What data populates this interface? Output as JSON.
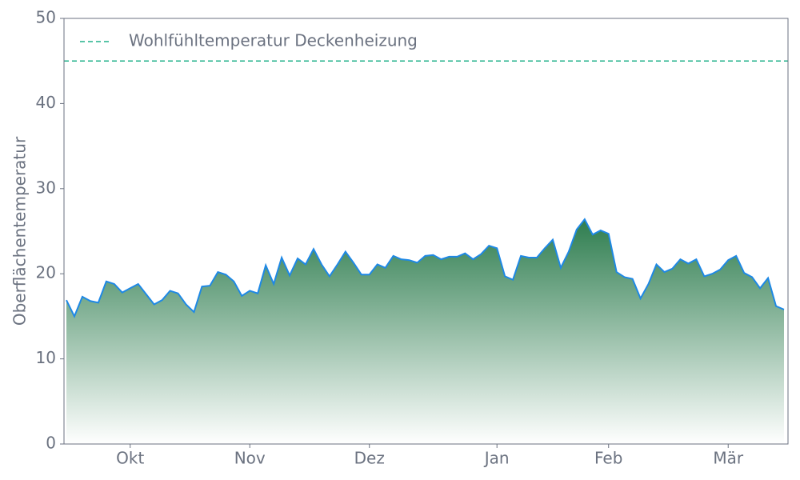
{
  "chart_data": {
    "type": "area",
    "ylabel": "Oberflächentemperatur",
    "categories": [
      null,
      null,
      null,
      null,
      null,
      null,
      null,
      null,
      "Okt",
      null,
      null,
      null,
      null,
      null,
      null,
      null,
      null,
      null,
      null,
      null,
      null,
      null,
      null,
      "Nov",
      null,
      null,
      null,
      null,
      null,
      null,
      null,
      null,
      null,
      null,
      null,
      null,
      null,
      null,
      "Dez",
      null,
      null,
      null,
      null,
      null,
      null,
      null,
      null,
      null,
      null,
      null,
      null,
      null,
      null,
      null,
      "Jan",
      null,
      null,
      null,
      null,
      null,
      null,
      null,
      null,
      null,
      null,
      null,
      null,
      null,
      "Feb",
      null,
      null,
      null,
      null,
      null,
      null,
      null,
      null,
      null,
      null,
      null,
      null,
      null,
      null,
      "Mär",
      null,
      null,
      null,
      null,
      null,
      null,
      null
    ],
    "series": [
      {
        "color": "#1e88e5",
        "fill_top": "#2e7d4f",
        "fill_bottom": "#ffffff",
        "values": [
          16.9,
          15.0,
          17.3,
          16.8,
          16.6,
          19.1,
          18.8,
          17.8,
          18.3,
          18.8,
          17.6,
          16.4,
          16.9,
          18.0,
          17.7,
          16.4,
          15.5,
          18.5,
          18.6,
          20.2,
          19.9,
          19.1,
          17.4,
          18.0,
          17.7,
          21.0,
          18.8,
          21.9,
          19.8,
          21.8,
          21.1,
          22.9,
          21.1,
          19.7,
          21.1,
          22.6,
          21.3,
          19.9,
          19.9,
          21.1,
          20.7,
          22.1,
          21.7,
          21.6,
          21.3,
          22.1,
          22.2,
          21.7,
          22.0,
          22.0,
          22.4,
          21.7,
          22.3,
          23.3,
          23.0,
          19.7,
          19.3,
          22.1,
          21.9,
          21.9,
          23.0,
          24.0,
          20.7,
          22.6,
          25.2,
          26.4,
          24.6,
          25.1,
          24.7,
          20.2,
          19.6,
          19.4,
          17.1,
          18.8,
          21.1,
          20.2,
          20.6,
          21.7,
          21.2,
          21.7,
          19.7,
          20.0,
          20.5,
          21.6,
          22.1,
          20.1,
          19.6,
          18.3,
          19.5,
          16.2,
          15.8
        ]
      }
    ],
    "hlines": [
      {
        "name": "Wohlfühltemperatur Deckenheizung",
        "value": 45,
        "color": "#20b08a",
        "style": "dashed"
      }
    ],
    "ylim": [
      0,
      50
    ],
    "yticks": [
      0,
      10,
      20,
      30,
      40,
      50
    ],
    "grid": false,
    "legend": "upper left"
  }
}
